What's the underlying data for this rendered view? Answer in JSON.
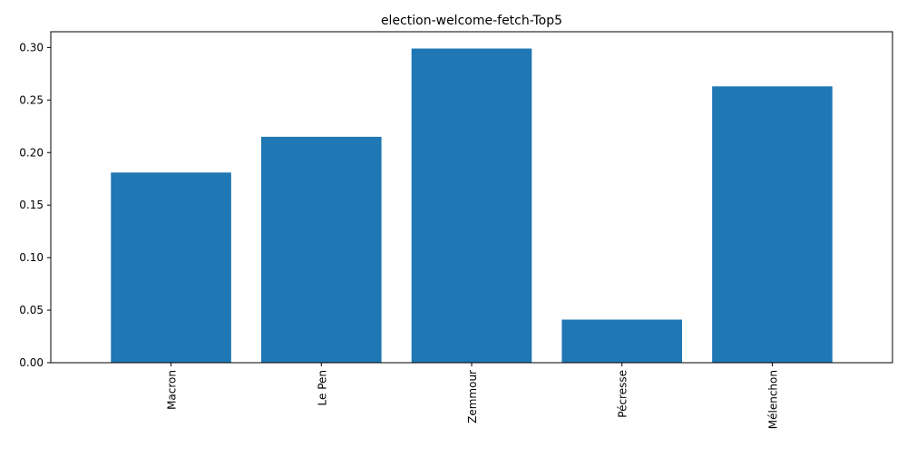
{
  "chart_data": {
    "type": "bar",
    "title": "election-welcome-fetch-Top5",
    "xlabel": "",
    "ylabel": "",
    "categories": [
      "Macron",
      "Le Pen",
      "Zemmour",
      "Pécresse",
      "Mélenchon"
    ],
    "values": [
      0.181,
      0.215,
      0.299,
      0.041,
      0.263
    ],
    "ylim": [
      0,
      0.315
    ],
    "yticks": [
      "0.00",
      "0.05",
      "0.10",
      "0.15",
      "0.20",
      "0.25",
      "0.30"
    ],
    "bar_color": "#1f77b4",
    "grid": false,
    "legend": "none"
  }
}
